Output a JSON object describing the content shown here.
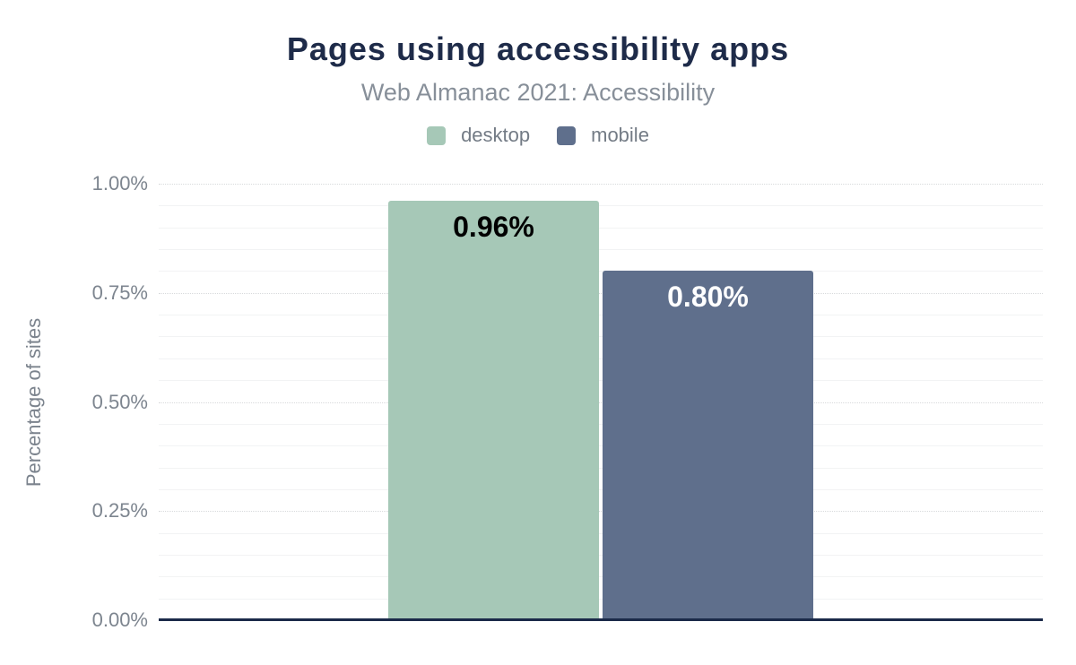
{
  "chart_data": {
    "type": "bar",
    "title": "Pages using accessibility apps",
    "subtitle": "Web Almanac 2021: Accessibility",
    "ylabel": "Percentage of sites",
    "xlabel": "",
    "categories": [
      "desktop",
      "mobile"
    ],
    "series": [
      {
        "name": "desktop",
        "value": 0.96,
        "label": "0.96%",
        "color": "#a6c8b7",
        "label_color": "#000000"
      },
      {
        "name": "mobile",
        "value": 0.8,
        "label": "0.80%",
        "color": "#5f6f8c",
        "label_color": "#ffffff"
      }
    ],
    "ylim": [
      0,
      1.0
    ],
    "y_ticks": [
      {
        "value": 0.0,
        "label": "0.00%"
      },
      {
        "value": 0.25,
        "label": "0.25%"
      },
      {
        "value": 0.5,
        "label": "0.50%"
      },
      {
        "value": 0.75,
        "label": "0.75%"
      },
      {
        "value": 1.0,
        "label": "1.00%"
      }
    ],
    "y_minor_step": 0.05,
    "grid": {
      "major": "dotted",
      "minor": "solid"
    },
    "legend_position": "top"
  },
  "colors": {
    "background": "#ffffff",
    "title": "#1e2b49",
    "subtitle": "#878f99",
    "tick_label": "#7d858f",
    "axis_title": "#7b838d",
    "legend_label": "#737b85",
    "axis_line": "#1b2a49",
    "major_grid": "#d8dadc",
    "minor_grid": "#f2f3f4",
    "desktop_bar": "#a6c8b7",
    "mobile_bar": "#5f6f8c"
  }
}
